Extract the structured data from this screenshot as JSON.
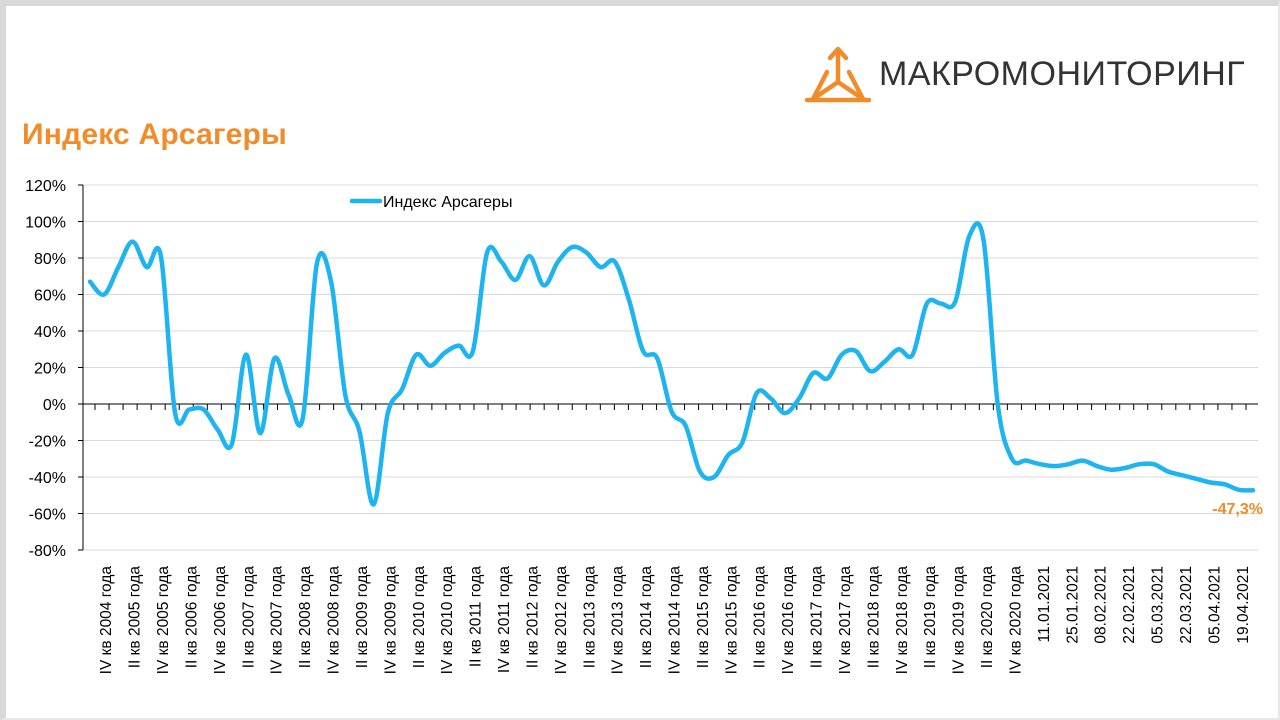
{
  "header": {
    "title": "Индекс Арсагеры",
    "logo_text": "МАКРОМОНИТОРИНГ",
    "logo_icon": "arrows-triangle-icon"
  },
  "colors": {
    "accent": "#f08c2a",
    "series": "#1eb4ef",
    "grid": "#d9d9d9"
  },
  "chart_data": {
    "type": "line",
    "title": "Индекс Арсагеры",
    "xlabel": "",
    "ylabel": "",
    "ylim": [
      -80,
      120
    ],
    "yticks": [
      -80,
      -60,
      -40,
      -20,
      0,
      20,
      40,
      60,
      80,
      100,
      120
    ],
    "ytick_labels": [
      "-80%",
      "-60%",
      "-40%",
      "-20%",
      "0%",
      "20%",
      "40%",
      "60%",
      "80%",
      "100%",
      "120%"
    ],
    "grid": true,
    "legend_position": "top-center",
    "x_labels": [
      "IV кв 2004 года",
      "II кв 2005 года",
      "IV кв 2005 года",
      "II кв 2006 года",
      "IV кв 2006 года",
      "II кв 2007 года",
      "IV кв 2007 года",
      "II кв 2008 года",
      "IV кв 2008 года",
      "II кв 2009 года",
      "IV кв 2009 года",
      "II кв 2010 года",
      "IV кв 2010 года",
      "II кв 2011 года",
      "IV кв 2011 года",
      "II кв 2012 года",
      "IV кв 2012 года",
      "II кв 2013 года",
      "IV кв 2013 года",
      "II кв 2014 года",
      "IV кв 2014 года",
      "II кв 2015 года",
      "IV кв 2015 года",
      "II кв 2016 года",
      "IV кв 2016 года",
      "II кв 2017 года",
      "IV кв 2017 года",
      "II кв 2018 года",
      "IV кв 2018 года",
      "II кв 2019 года",
      "IV кв 2019 года",
      "II кв 2020 года",
      "IV кв 2020 года",
      "11.01.2021",
      "25.01.2021",
      "08.02.2021",
      "22.02.2021",
      "05.03.2021",
      "22.03.2021",
      "05.04.2021",
      "19.04.2021"
    ],
    "series": [
      {
        "name": "Индекс Арсагеры",
        "values": [
          67,
          60,
          75,
          89,
          75,
          81,
          -5,
          -3,
          -3,
          -14,
          -22,
          27,
          -16,
          25,
          5,
          -8,
          77,
          67,
          5,
          -15,
          -55,
          -5,
          8,
          27,
          21,
          28,
          32,
          29,
          83,
          78,
          68,
          81,
          65,
          78,
          86,
          83,
          75,
          78,
          57,
          29,
          25,
          -4,
          -12,
          -37,
          -40,
          -28,
          -21,
          6,
          3,
          -5,
          3,
          17,
          14,
          27,
          29,
          18,
          23,
          30,
          27,
          55,
          55,
          56,
          92,
          90,
          0,
          -30,
          -31,
          -33,
          -34,
          -33,
          -31,
          -34,
          -36,
          -35,
          -33,
          -33,
          -37,
          -39,
          -41,
          -43,
          -44,
          -47,
          -47.3
        ]
      }
    ],
    "last_value_label": "-47,3%"
  }
}
